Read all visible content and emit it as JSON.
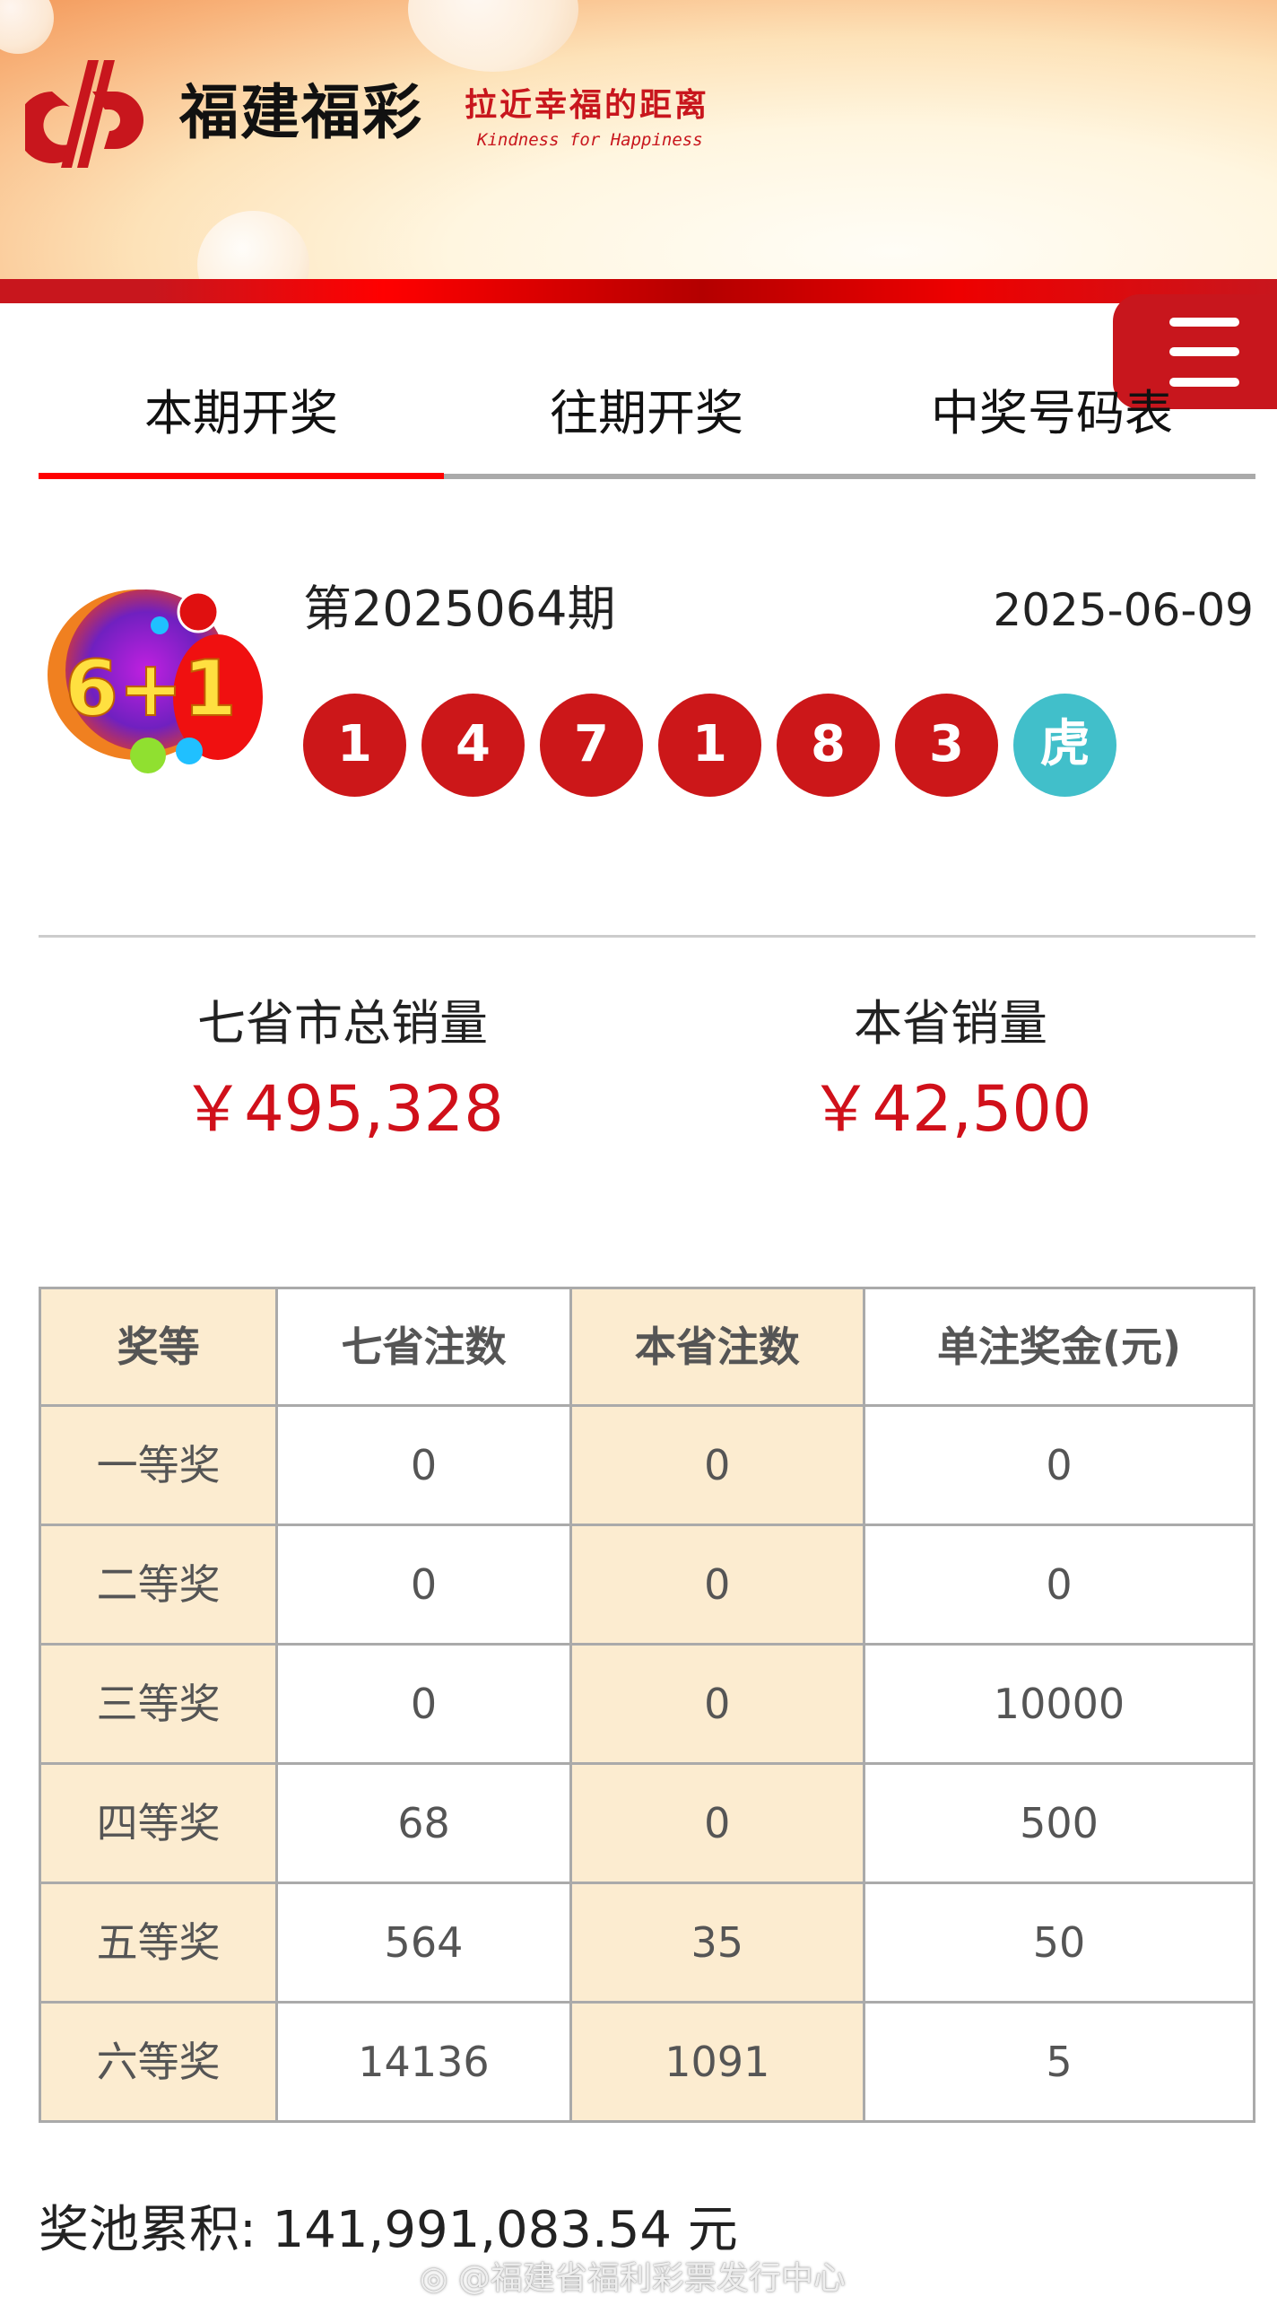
{
  "header": {
    "brand": "福建福彩",
    "slogan": "拉近幸福的距离",
    "slogan_en": "Kindness for Happiness"
  },
  "tabs": [
    {
      "label": "本期开奖",
      "active": true
    },
    {
      "label": "往期开奖",
      "active": false
    },
    {
      "label": "中奖号码表",
      "active": false
    }
  ],
  "draw": {
    "game": "6+1",
    "issue": "第2025064期",
    "date": "2025-06-09",
    "numbers": [
      "1",
      "4",
      "7",
      "1",
      "8",
      "3"
    ],
    "zodiac": "虎",
    "ball_color": "#cc1719",
    "zodiac_color": "#41bfca"
  },
  "sales": [
    {
      "label": "七省市总销量",
      "value": "￥495,328"
    },
    {
      "label": "本省销量",
      "value": "￥42,500"
    }
  ],
  "table": {
    "headers": [
      "奖等",
      "七省注数",
      "本省注数",
      "单注奖金(元)"
    ],
    "rows": [
      [
        "一等奖",
        "0",
        "0",
        "0"
      ],
      [
        "二等奖",
        "0",
        "0",
        "0"
      ],
      [
        "三等奖",
        "0",
        "0",
        "10000"
      ],
      [
        "四等奖",
        "68",
        "0",
        "500"
      ],
      [
        "五等奖",
        "564",
        "35",
        "50"
      ],
      [
        "六等奖",
        "14136",
        "1091",
        "5"
      ]
    ]
  },
  "pool": "奖池累积: 141,991,083.54 元",
  "watermark": "@福建省福利彩票发行中心",
  "colors": {
    "accent": "#c8161d",
    "price": "#d0101a",
    "table_highlight": "#fcecd0"
  }
}
